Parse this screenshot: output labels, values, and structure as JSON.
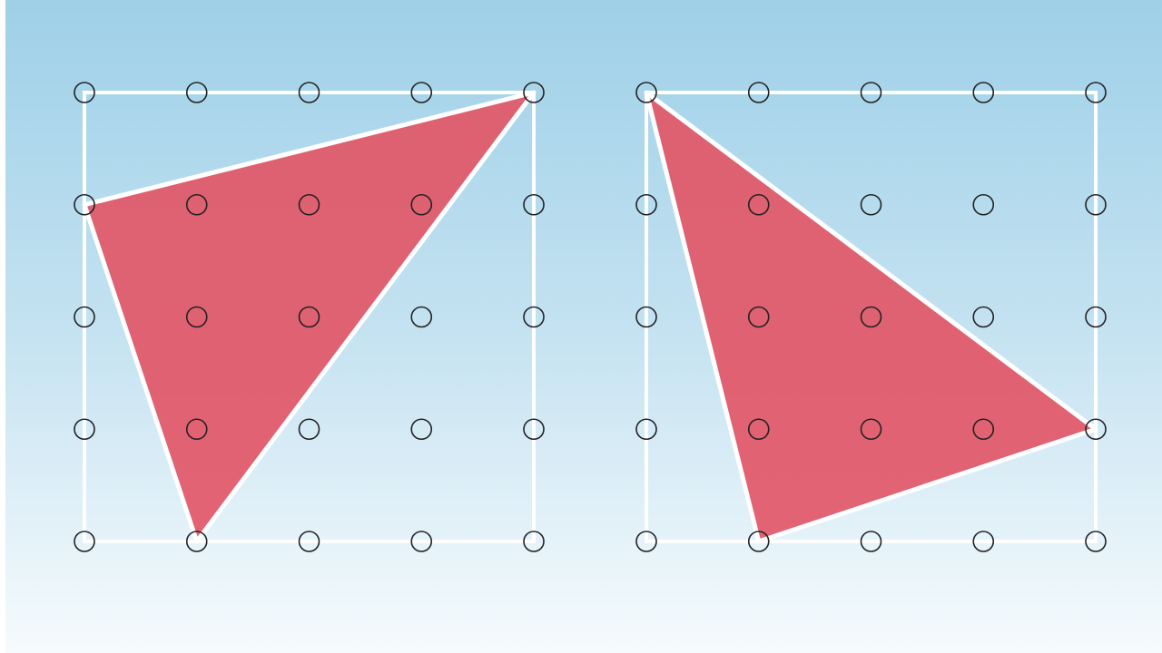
{
  "colors": {
    "background_top": "#9ed0e8",
    "background_bottom": "#f6fbfd",
    "frame": "#ffffff",
    "triangle_fill": "#e25767",
    "peg_stroke": "#222222"
  },
  "geoboards": [
    {
      "name": "left-geoboard",
      "grid_size": 5,
      "triangle_vertices": [
        [
          0,
          1
        ],
        [
          4,
          0
        ],
        [
          1,
          4
        ]
      ]
    },
    {
      "name": "right-geoboard",
      "grid_size": 5,
      "triangle_vertices": [
        [
          0,
          0
        ],
        [
          4,
          3
        ],
        [
          1,
          4
        ]
      ]
    }
  ]
}
